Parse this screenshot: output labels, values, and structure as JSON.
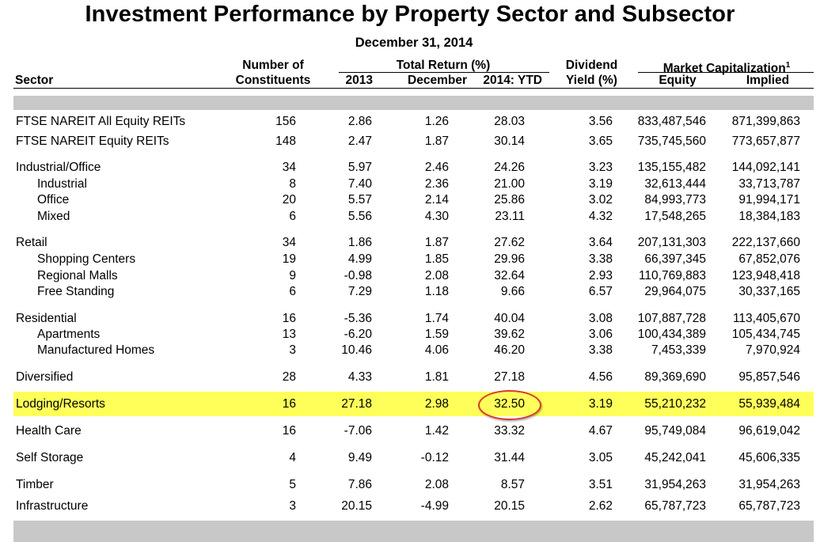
{
  "title": "Investment Performance by Property Sector and Subsector",
  "subtitle": "December 31, 2014",
  "headers": {
    "sector": "Sector",
    "constituents_line1": "Number of",
    "constituents_line2": "Constituents",
    "total_return_group": "Total Return (%)",
    "col_2013": "2013",
    "col_december": "December",
    "col_ytd": "2014: YTD",
    "dividend_line1": "Dividend",
    "dividend_line2": "Yield (%)",
    "market_cap_group": "Market Capitalization",
    "market_cap_footnote": "1",
    "col_equity": "Equity",
    "col_implied": "Implied"
  },
  "rows": [
    {
      "sector": "FTSE NAREIT All Equity REITs",
      "indent": false,
      "constituents": "156",
      "r2013": "2.86",
      "december": "1.26",
      "ytd": "28.03",
      "yield": "3.56",
      "equity": "833,487,546",
      "implied": "871,399,863"
    },
    {
      "sector": "FTSE NAREIT Equity REITs",
      "indent": false,
      "constituents": "148",
      "r2013": "2.47",
      "december": "1.87",
      "ytd": "30.14",
      "yield": "3.65",
      "equity": "735,745,560",
      "implied": "773,657,877"
    },
    {
      "sector": "Industrial/Office",
      "indent": false,
      "constituents": "34",
      "r2013": "5.97",
      "december": "2.46",
      "ytd": "24.26",
      "yield": "3.23",
      "equity": "135,155,482",
      "implied": "144,092,141"
    },
    {
      "sector": "Industrial",
      "indent": true,
      "constituents": "8",
      "r2013": "7.40",
      "december": "2.36",
      "ytd": "21.00",
      "yield": "3.19",
      "equity": "32,613,444",
      "implied": "33,713,787"
    },
    {
      "sector": "Office",
      "indent": true,
      "constituents": "20",
      "r2013": "5.57",
      "december": "2.14",
      "ytd": "25.86",
      "yield": "3.02",
      "equity": "84,993,773",
      "implied": "91,994,171"
    },
    {
      "sector": "Mixed",
      "indent": true,
      "constituents": "6",
      "r2013": "5.56",
      "december": "4.30",
      "ytd": "23.11",
      "yield": "4.32",
      "equity": "17,548,265",
      "implied": "18,384,183"
    },
    {
      "sector": "Retail",
      "indent": false,
      "constituents": "34",
      "r2013": "1.86",
      "december": "1.87",
      "ytd": "27.62",
      "yield": "3.64",
      "equity": "207,131,303",
      "implied": "222,137,660"
    },
    {
      "sector": "Shopping Centers",
      "indent": true,
      "constituents": "19",
      "r2013": "4.99",
      "december": "1.85",
      "ytd": "29.96",
      "yield": "3.38",
      "equity": "66,397,345",
      "implied": "67,852,076"
    },
    {
      "sector": "Regional Malls",
      "indent": true,
      "constituents": "9",
      "r2013": "-0.98",
      "december": "2.08",
      "ytd": "32.64",
      "yield": "2.93",
      "equity": "110,769,883",
      "implied": "123,948,418"
    },
    {
      "sector": "Free Standing",
      "indent": true,
      "constituents": "6",
      "r2013": "7.29",
      "december": "1.18",
      "ytd": "9.66",
      "yield": "6.57",
      "equity": "29,964,075",
      "implied": "30,337,165"
    },
    {
      "sector": "Residential",
      "indent": false,
      "constituents": "16",
      "r2013": "-5.36",
      "december": "1.74",
      "ytd": "40.04",
      "yield": "3.08",
      "equity": "107,887,728",
      "implied": "113,405,670"
    },
    {
      "sector": "Apartments",
      "indent": true,
      "constituents": "13",
      "r2013": "-6.20",
      "december": "1.59",
      "ytd": "39.62",
      "yield": "3.06",
      "equity": "100,434,389",
      "implied": "105,434,745"
    },
    {
      "sector": "Manufactured Homes",
      "indent": true,
      "constituents": "3",
      "r2013": "10.46",
      "december": "4.06",
      "ytd": "46.20",
      "yield": "3.38",
      "equity": "7,453,339",
      "implied": "7,970,924"
    },
    {
      "sector": "Diversified",
      "indent": false,
      "constituents": "28",
      "r2013": "4.33",
      "december": "1.81",
      "ytd": "27.18",
      "yield": "4.56",
      "equity": "89,369,690",
      "implied": "95,857,546"
    },
    {
      "sector": "Lodging/Resorts",
      "indent": false,
      "highlighted": true,
      "constituents": "16",
      "r2013": "27.18",
      "december": "2.98",
      "ytd": "32.50",
      "yield": "3.19",
      "equity": "55,210,232",
      "implied": "55,939,484"
    },
    {
      "sector": "Health Care",
      "indent": false,
      "constituents": "16",
      "r2013": "-7.06",
      "december": "1.42",
      "ytd": "33.32",
      "yield": "4.67",
      "equity": "95,749,084",
      "implied": "96,619,042"
    },
    {
      "sector": "Self Storage",
      "indent": false,
      "constituents": "4",
      "r2013": "9.49",
      "december": "-0.12",
      "ytd": "31.44",
      "yield": "3.05",
      "equity": "45,242,041",
      "implied": "45,606,335"
    },
    {
      "sector": "Timber",
      "indent": false,
      "constituents": "5",
      "r2013": "7.86",
      "december": "2.08",
      "ytd": "8.57",
      "yield": "3.51",
      "equity": "31,954,263",
      "implied": "31,954,263"
    },
    {
      "sector": "Infrastructure",
      "indent": false,
      "constituents": "3",
      "r2013": "20.15",
      "december": "-4.99",
      "ytd": "20.15",
      "yield": "2.62",
      "equity": "65,787,723",
      "implied": "65,787,723"
    }
  ],
  "colors": {
    "highlight": "#ffff5a",
    "band": "#c8c8c8",
    "circle": "#d8382b"
  }
}
